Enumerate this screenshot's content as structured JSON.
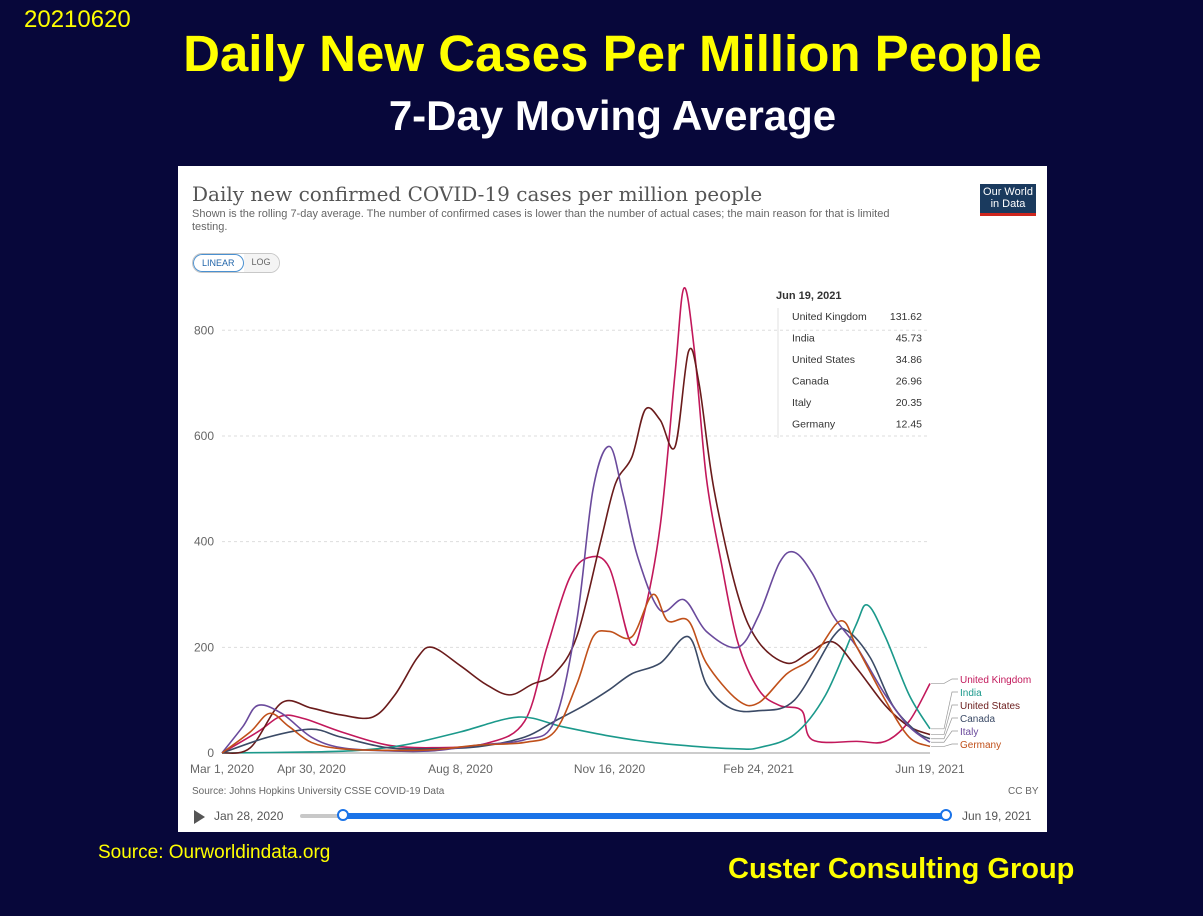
{
  "header": {
    "date_stamp": "20210620",
    "title": "Daily New Cases Per Million People",
    "subtitle": "7-Day Moving Average"
  },
  "footer": {
    "source_note": "Source:  Ourworldindata.org",
    "company": "Custer Consulting Group"
  },
  "chart_data": {
    "type": "line",
    "title": "Daily new confirmed COVID-19 cases per million people",
    "subtitle": "Shown is the rolling 7-day average. The number of confirmed cases is lower than the number of actual cases; the main reason for that is limited testing.",
    "logo_text": [
      "Our World",
      "in Data"
    ],
    "scale_options": [
      "LINEAR",
      "LOG"
    ],
    "active_scale": "LINEAR",
    "x_range": [
      "2020-03-01",
      "2021-06-19"
    ],
    "x_ticks": [
      "Mar 1, 2020",
      "Apr 30, 2020",
      "Aug 8, 2020",
      "Nov 16, 2020",
      "Feb 24, 2021",
      "Jun 19, 2021"
    ],
    "ylim": [
      0,
      880
    ],
    "y_ticks": [
      0,
      200,
      400,
      600,
      800
    ],
    "grid": true,
    "source": "Source: Johns Hopkins University CSSE COVID-19 Data",
    "license": "CC BY",
    "tooltip": {
      "date": "Jun 19, 2021",
      "rows": [
        {
          "name": "United Kingdom",
          "value": "131.62"
        },
        {
          "name": "India",
          "value": "45.73"
        },
        {
          "name": "United States",
          "value": "34.86"
        },
        {
          "name": "Canada",
          "value": "26.96"
        },
        {
          "name": "Italy",
          "value": "20.35"
        },
        {
          "name": "Germany",
          "value": "12.45"
        }
      ]
    },
    "timeline": {
      "start": "Jan 28, 2020",
      "end": "Jun 19, 2021"
    },
    "series": [
      {
        "name": "United Kingdom",
        "color": "#c2185b",
        "points": [
          [
            "2020-03-01",
            0
          ],
          [
            "2020-03-25",
            40
          ],
          [
            "2020-04-10",
            70
          ],
          [
            "2020-04-25",
            65
          ],
          [
            "2020-05-20",
            40
          ],
          [
            "2020-06-20",
            15
          ],
          [
            "2020-07-20",
            10
          ],
          [
            "2020-08-25",
            18
          ],
          [
            "2020-09-20",
            60
          ],
          [
            "2020-10-05",
            200
          ],
          [
            "2020-10-20",
            330
          ],
          [
            "2020-11-02",
            370
          ],
          [
            "2020-11-16",
            350
          ],
          [
            "2020-11-30",
            210
          ],
          [
            "2020-12-08",
            250
          ],
          [
            "2020-12-20",
            430
          ],
          [
            "2020-12-30",
            720
          ],
          [
            "2021-01-05",
            880
          ],
          [
            "2021-01-12",
            760
          ],
          [
            "2021-01-20",
            520
          ],
          [
            "2021-01-30",
            360
          ],
          [
            "2021-02-10",
            210
          ],
          [
            "2021-02-24",
            120
          ],
          [
            "2021-03-10",
            90
          ],
          [
            "2021-03-25",
            80
          ],
          [
            "2021-04-01",
            25
          ],
          [
            "2021-05-01",
            22
          ],
          [
            "2021-05-20",
            22
          ],
          [
            "2021-06-05",
            60
          ],
          [
            "2021-06-19",
            131.62
          ]
        ]
      },
      {
        "name": "India",
        "color": "#1b998b",
        "points": [
          [
            "2020-03-01",
            0
          ],
          [
            "2020-04-30",
            2
          ],
          [
            "2020-06-01",
            5
          ],
          [
            "2020-07-01",
            15
          ],
          [
            "2020-08-08",
            40
          ],
          [
            "2020-09-16",
            68
          ],
          [
            "2020-10-15",
            50
          ],
          [
            "2020-11-16",
            32
          ],
          [
            "2020-12-15",
            20
          ],
          [
            "2021-01-15",
            12
          ],
          [
            "2021-02-10",
            8
          ],
          [
            "2021-02-24",
            10
          ],
          [
            "2021-03-20",
            35
          ],
          [
            "2021-04-10",
            110
          ],
          [
            "2021-04-30",
            240
          ],
          [
            "2021-05-08",
            280
          ],
          [
            "2021-05-20",
            220
          ],
          [
            "2021-06-05",
            110
          ],
          [
            "2021-06-19",
            45.73
          ]
        ]
      },
      {
        "name": "United States",
        "color": "#6a1b1b",
        "points": [
          [
            "2020-03-01",
            0
          ],
          [
            "2020-03-20",
            10
          ],
          [
            "2020-04-10",
            95
          ],
          [
            "2020-04-30",
            85
          ],
          [
            "2020-05-20",
            72
          ],
          [
            "2020-06-10",
            68
          ],
          [
            "2020-06-25",
            110
          ],
          [
            "2020-07-10",
            180
          ],
          [
            "2020-07-20",
            200
          ],
          [
            "2020-08-08",
            165
          ],
          [
            "2020-08-25",
            130
          ],
          [
            "2020-09-10",
            110
          ],
          [
            "2020-09-25",
            130
          ],
          [
            "2020-10-10",
            150
          ],
          [
            "2020-10-25",
            220
          ],
          [
            "2020-11-10",
            400
          ],
          [
            "2020-11-20",
            510
          ],
          [
            "2020-12-01",
            560
          ],
          [
            "2020-12-10",
            650
          ],
          [
            "2020-12-20",
            630
          ],
          [
            "2020-12-30",
            580
          ],
          [
            "2021-01-08",
            760
          ],
          [
            "2021-01-15",
            700
          ],
          [
            "2021-01-25",
            500
          ],
          [
            "2021-02-10",
            300
          ],
          [
            "2021-02-24",
            210
          ],
          [
            "2021-03-15",
            170
          ],
          [
            "2021-03-30",
            190
          ],
          [
            "2021-04-15",
            210
          ],
          [
            "2021-05-01",
            160
          ],
          [
            "2021-05-20",
            90
          ],
          [
            "2021-06-05",
            50
          ],
          [
            "2021-06-19",
            34.86
          ]
        ]
      },
      {
        "name": "Canada",
        "color": "#3b4a66",
        "points": [
          [
            "2020-03-01",
            0
          ],
          [
            "2020-04-01",
            30
          ],
          [
            "2020-04-30",
            45
          ],
          [
            "2020-05-20",
            30
          ],
          [
            "2020-06-20",
            10
          ],
          [
            "2020-07-20",
            8
          ],
          [
            "2020-08-20",
            12
          ],
          [
            "2020-09-20",
            30
          ],
          [
            "2020-10-10",
            60
          ],
          [
            "2020-10-30",
            90
          ],
          [
            "2020-11-16",
            120
          ],
          [
            "2020-12-01",
            150
          ],
          [
            "2020-12-20",
            170
          ],
          [
            "2021-01-08",
            220
          ],
          [
            "2021-01-20",
            130
          ],
          [
            "2021-02-05",
            85
          ],
          [
            "2021-02-24",
            80
          ],
          [
            "2021-03-20",
            100
          ],
          [
            "2021-04-15",
            220
          ],
          [
            "2021-04-25",
            230
          ],
          [
            "2021-05-10",
            180
          ],
          [
            "2021-05-25",
            90
          ],
          [
            "2021-06-10",
            40
          ],
          [
            "2021-06-19",
            26.96
          ]
        ]
      },
      {
        "name": "Italy",
        "color": "#6a4a9c",
        "points": [
          [
            "2020-03-01",
            0
          ],
          [
            "2020-03-15",
            50
          ],
          [
            "2020-03-25",
            90
          ],
          [
            "2020-04-10",
            75
          ],
          [
            "2020-04-30",
            30
          ],
          [
            "2020-05-20",
            10
          ],
          [
            "2020-06-20",
            4
          ],
          [
            "2020-07-20",
            4
          ],
          [
            "2020-08-20",
            15
          ],
          [
            "2020-09-20",
            25
          ],
          [
            "2020-10-10",
            60
          ],
          [
            "2020-10-25",
            250
          ],
          [
            "2020-11-05",
            500
          ],
          [
            "2020-11-16",
            580
          ],
          [
            "2020-11-25",
            490
          ],
          [
            "2020-12-05",
            370
          ],
          [
            "2020-12-20",
            270
          ],
          [
            "2021-01-05",
            290
          ],
          [
            "2021-01-20",
            230
          ],
          [
            "2021-02-10",
            200
          ],
          [
            "2021-02-24",
            260
          ],
          [
            "2021-03-10",
            360
          ],
          [
            "2021-03-20",
            380
          ],
          [
            "2021-04-01",
            340
          ],
          [
            "2021-04-15",
            260
          ],
          [
            "2021-05-01",
            200
          ],
          [
            "2021-05-20",
            110
          ],
          [
            "2021-06-05",
            50
          ],
          [
            "2021-06-19",
            20.35
          ]
        ]
      },
      {
        "name": "Germany",
        "color": "#c0501a",
        "points": [
          [
            "2020-03-01",
            0
          ],
          [
            "2020-03-20",
            40
          ],
          [
            "2020-04-02",
            75
          ],
          [
            "2020-04-15",
            50
          ],
          [
            "2020-04-30",
            20
          ],
          [
            "2020-05-20",
            8
          ],
          [
            "2020-06-20",
            5
          ],
          [
            "2020-07-20",
            6
          ],
          [
            "2020-08-20",
            15
          ],
          [
            "2020-09-20",
            20
          ],
          [
            "2020-10-10",
            40
          ],
          [
            "2020-10-25",
            130
          ],
          [
            "2020-11-05",
            220
          ],
          [
            "2020-11-16",
            230
          ],
          [
            "2020-12-01",
            220
          ],
          [
            "2020-12-15",
            300
          ],
          [
            "2020-12-25",
            250
          ],
          [
            "2021-01-08",
            250
          ],
          [
            "2021-01-20",
            170
          ],
          [
            "2021-02-10",
            100
          ],
          [
            "2021-02-24",
            95
          ],
          [
            "2021-03-15",
            150
          ],
          [
            "2021-04-01",
            180
          ],
          [
            "2021-04-20",
            250
          ],
          [
            "2021-05-01",
            200
          ],
          [
            "2021-05-20",
            100
          ],
          [
            "2021-06-05",
            30
          ],
          [
            "2021-06-19",
            12.45
          ]
        ]
      }
    ],
    "end_labels": [
      {
        "name": "United Kingdom",
        "color": "#c2185b"
      },
      {
        "name": "India",
        "color": "#1b998b"
      },
      {
        "name": "United States",
        "color": "#6a1b1b"
      },
      {
        "name": "Canada",
        "color": "#3b4a66"
      },
      {
        "name": "Italy",
        "color": "#6a4a9c"
      },
      {
        "name": "Germany",
        "color": "#c0501a"
      }
    ]
  }
}
